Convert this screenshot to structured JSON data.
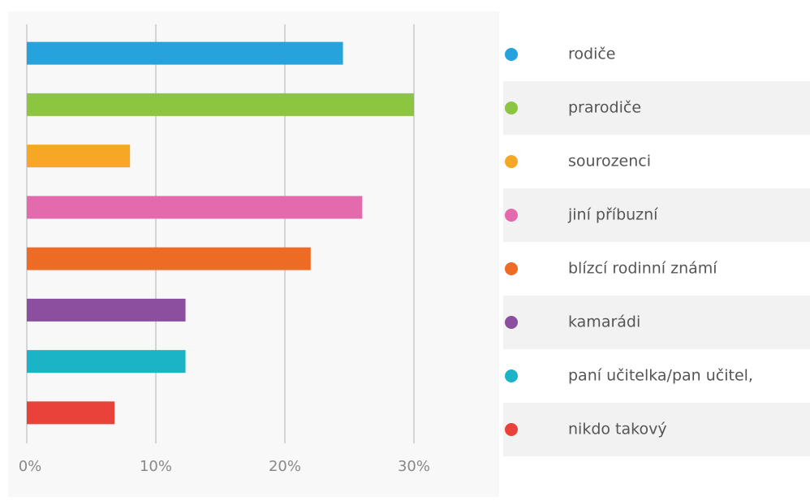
{
  "chart_data": {
    "type": "bar",
    "orientation": "horizontal",
    "categories": [
      "rodiče",
      "prarodiče",
      "sourozenci",
      "jiní příbuzní",
      "blízcí rodinní známí",
      "kamarádi",
      "paní učitelka/pan učitel,",
      "nikdo takový"
    ],
    "values": [
      24.5,
      30,
      8,
      26,
      22,
      12.3,
      12.3,
      6.8
    ],
    "colors": [
      "#26a3dd",
      "#8cc540",
      "#f6a726",
      "#e46aae",
      "#ed6b25",
      "#8c4f9f",
      "#1ab4c6",
      "#e8423b"
    ],
    "xlim": [
      0,
      30
    ],
    "xticks": [
      {
        "value": 0,
        "label": "0%"
      },
      {
        "value": 10,
        "label": "10%"
      },
      {
        "value": 20,
        "label": "20%"
      },
      {
        "value": 30,
        "label": "30%"
      }
    ],
    "grid": true,
    "legend": "right"
  }
}
